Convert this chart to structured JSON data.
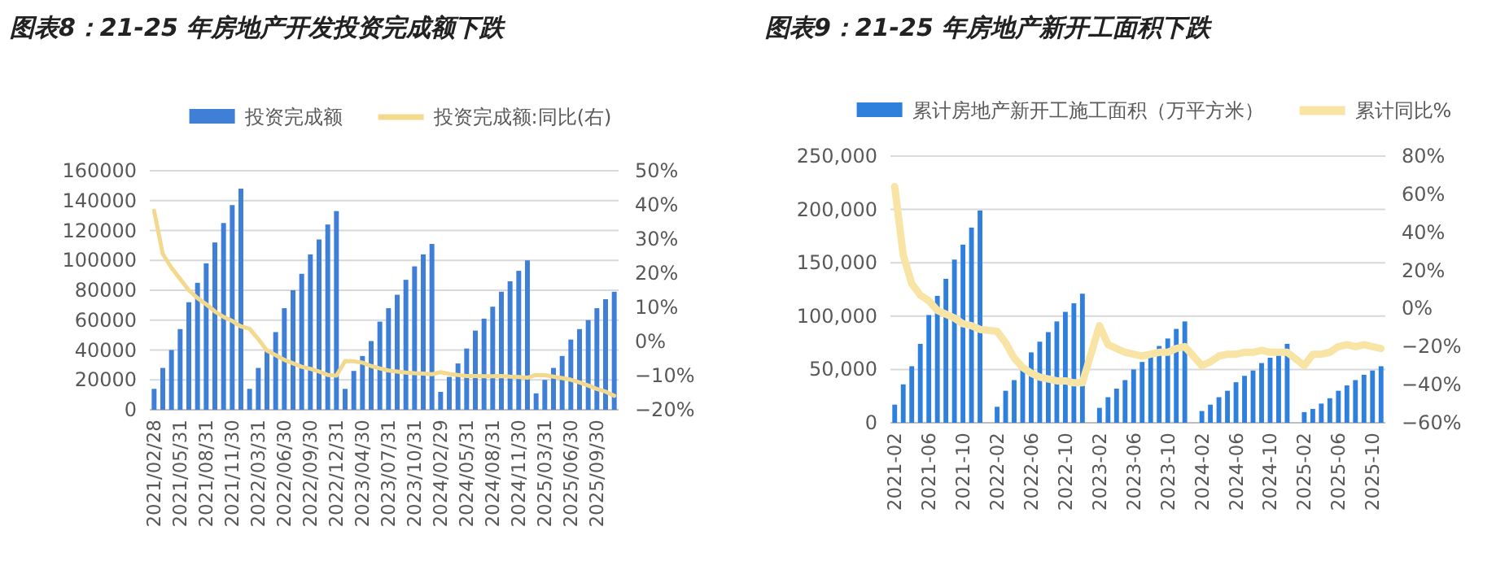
{
  "chart_data": [
    {
      "type": "bar",
      "title": "图表8：21-25 年房地产开发投资完成额下跌",
      "categories": [
        "2021/02/28",
        null,
        null,
        "2021/05/31",
        null,
        null,
        "2021/08/31",
        null,
        null,
        "2021/11/30",
        null,
        null,
        "2022/03/31",
        null,
        null,
        "2022/06/30",
        null,
        null,
        "2022/09/30",
        null,
        null,
        "2022/12/31",
        null,
        null,
        "2023/04/30",
        null,
        null,
        "2023/07/31",
        null,
        null,
        "2023/10/31",
        null,
        null,
        "2024/02/29",
        null,
        null,
        "2024/05/31",
        null,
        null,
        "2024/08/31",
        null,
        null,
        "2024/11/30",
        null,
        null,
        "2025/03/31",
        null,
        null,
        "2025/06/30",
        null,
        null,
        "2025/09/30",
        null,
        null
      ],
      "series": [
        {
          "name": "投资完成额",
          "color": "#3f7fd6",
          "values": [
            14000,
            28000,
            40000,
            54000,
            72000,
            85000,
            98000,
            112000,
            125000,
            137000,
            148000,
            14000,
            28000,
            39000,
            52000,
            68000,
            80000,
            91000,
            104000,
            114000,
            124000,
            133000,
            14000,
            26000,
            36000,
            46000,
            59000,
            68000,
            77000,
            87000,
            96000,
            104000,
            111000,
            12000,
            22000,
            31000,
            41000,
            53000,
            61000,
            69000,
            79000,
            86000,
            93000,
            100000,
            11000,
            20000,
            28000,
            36000,
            47000,
            54000,
            60000,
            68000,
            74000,
            79000
          ]
        },
        {
          "name": "投资完成额:同比(右)",
          "type": "line",
          "axis": "y2",
          "color": "#f3d98e",
          "values": [
            38.3,
            25.6,
            21.6,
            18.3,
            15.0,
            12.7,
            10.9,
            8.8,
            7.2,
            6.0,
            4.4,
            3.7,
            0.7,
            -2.7,
            -4.0,
            -5.4,
            -6.4,
            -7.4,
            -8.0,
            -8.8,
            -9.8,
            -10.0,
            -5.7,
            -5.8,
            -6.2,
            -7.2,
            -7.9,
            -8.5,
            -8.8,
            -9.1,
            -9.3,
            -9.4,
            -9.6,
            -9.0,
            -9.5,
            -9.8,
            -10.1,
            -10.1,
            -10.2,
            -10.2,
            -10.1,
            -10.3,
            -10.4,
            -10.6,
            -9.8,
            -9.9,
            -10.3,
            -10.7,
            -11.2,
            -12.0,
            -12.9,
            -13.9,
            -14.7,
            -15.9
          ]
        }
      ],
      "ylim": [
        0,
        160000
      ],
      "yticks": [
        0,
        20000,
        40000,
        60000,
        80000,
        100000,
        120000,
        140000,
        160000
      ],
      "y2lim": [
        -20,
        50
      ],
      "y2ticks": [
        {
          "value": -20,
          "label": "−20%"
        },
        {
          "value": -10,
          "label": "−10%"
        },
        {
          "value": 0,
          "label": "0%"
        },
        {
          "value": 10,
          "label": "10%"
        },
        {
          "value": 20,
          "label": "20%"
        },
        {
          "value": 30,
          "label": "30%"
        },
        {
          "value": 40,
          "label": "40%"
        },
        {
          "value": 50,
          "label": "50%"
        }
      ],
      "grid": "y",
      "legend": "top"
    },
    {
      "type": "bar",
      "title": "图表9：21-25 年房地产新开工面积下跌",
      "categories": [
        "2021-02",
        null,
        null,
        null,
        "2021-06",
        null,
        null,
        null,
        "2021-10",
        null,
        null,
        null,
        "2022-02",
        null,
        null,
        null,
        "2022-06",
        null,
        null,
        null,
        "2022-10",
        null,
        null,
        null,
        "2023-02",
        null,
        null,
        null,
        "2023-06",
        null,
        null,
        null,
        "2023-10",
        null,
        null,
        null,
        "2024-02",
        null,
        null,
        null,
        "2024-06",
        null,
        null,
        null,
        "2024-10",
        null,
        null,
        null,
        "2025-02",
        null,
        null,
        null,
        "2025-06",
        null,
        null,
        null,
        "2025-10",
        null
      ],
      "series": [
        {
          "name": "累计房地产新开工施工面积（万平方米）",
          "color": "#2f7fdc",
          "values": [
            17000,
            36000,
            53000,
            74000,
            101000,
            119000,
            135000,
            153000,
            167000,
            183000,
            199000,
            null,
            15000,
            30000,
            40000,
            52000,
            66000,
            76000,
            85000,
            95000,
            104000,
            112000,
            121000,
            null,
            14000,
            24000,
            32000,
            40000,
            50000,
            57000,
            64000,
            72000,
            79000,
            88000,
            95000,
            null,
            11000,
            17000,
            24000,
            30000,
            38000,
            44000,
            49000,
            56000,
            61000,
            67000,
            74000,
            null,
            10000,
            13000,
            18000,
            23000,
            30000,
            35000,
            40000,
            45000,
            49000,
            53000
          ]
        },
        {
          "name": "累计同比%",
          "type": "line",
          "axis": "y2",
          "color": "#f8e4a4",
          "values": [
            64,
            28,
            13,
            7,
            4,
            -1,
            -3,
            -5,
            -8,
            -9,
            -11,
            null,
            -12,
            -18,
            -26,
            -31,
            -34,
            -36,
            -37,
            -38,
            -38,
            -39,
            -39,
            null,
            -9,
            -19,
            -21,
            -23,
            -24,
            -25,
            -24,
            -23,
            -23,
            -21,
            -20,
            null,
            -30,
            -28,
            -25,
            -24,
            -24,
            -23,
            -23,
            -22,
            -23,
            -23,
            -23,
            null,
            -30,
            -24,
            -24,
            -23,
            -20,
            -19,
            -20,
            -19,
            -20,
            -21
          ]
        }
      ],
      "ylim": [
        0,
        250000
      ],
      "yticks": [
        0,
        {
          "value": 50000,
          "label": "50,000"
        },
        {
          "value": 100000,
          "label": "100,000"
        },
        {
          "value": 150000,
          "label": "150,000"
        },
        {
          "value": 200000,
          "label": "200,000"
        },
        {
          "value": 250000,
          "label": "250,000"
        }
      ],
      "y2lim": [
        -60,
        80
      ],
      "y2ticks": [
        {
          "value": -60,
          "label": "−60%"
        },
        {
          "value": -40,
          "label": "−40%"
        },
        {
          "value": -20,
          "label": "−20%"
        },
        {
          "value": 0,
          "label": "0%"
        },
        {
          "value": 20,
          "label": "20%"
        },
        {
          "value": 40,
          "label": "40%"
        },
        {
          "value": 60,
          "label": "60%"
        },
        {
          "value": 80,
          "label": "80%"
        }
      ],
      "grid": "y",
      "legend": "top"
    }
  ]
}
